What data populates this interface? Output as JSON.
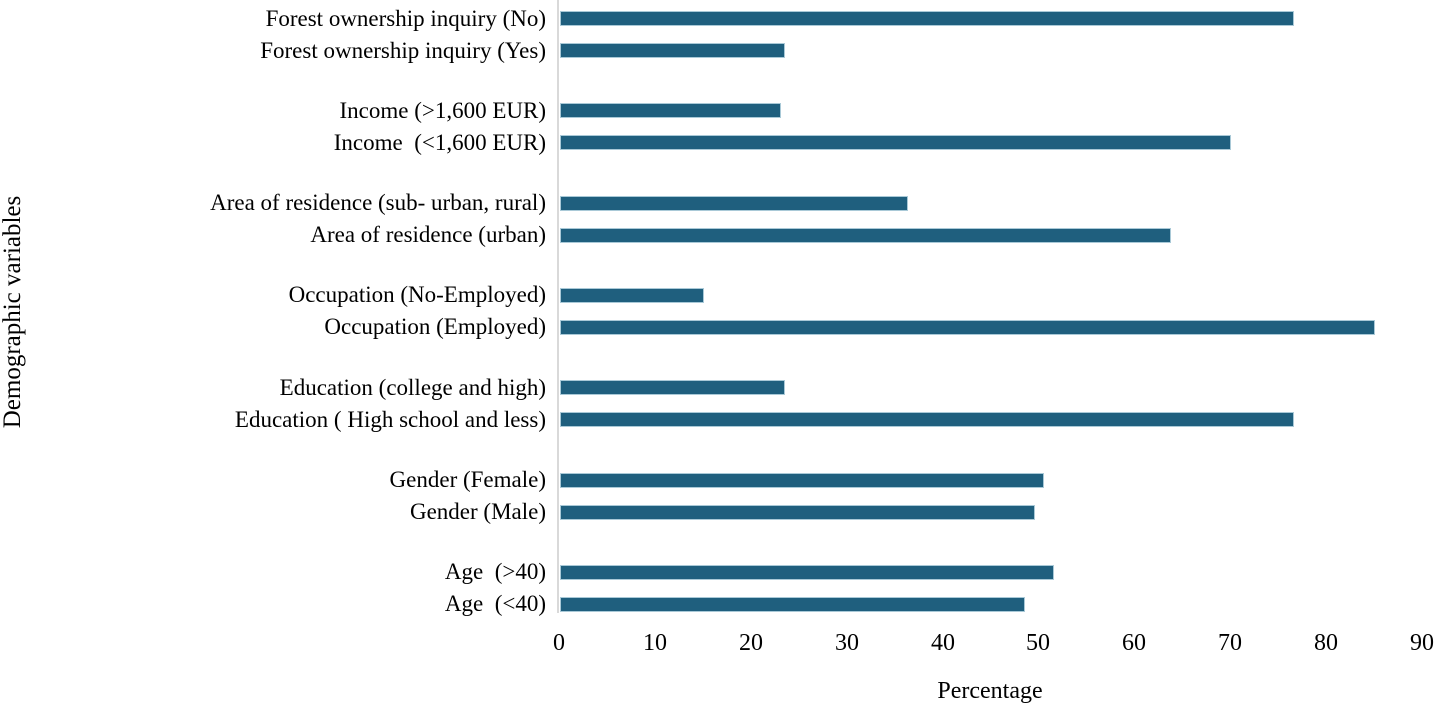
{
  "figure": {
    "background_color": "#ffffff",
    "text_color": "#000000"
  },
  "chart_data": {
    "type": "bar",
    "orientation": "horizontal",
    "title": "",
    "xlabel": "Percentage",
    "ylabel": "Demographic variables",
    "xlim": [
      0,
      90
    ],
    "x_ticks": [
      0,
      10,
      20,
      30,
      40,
      50,
      60,
      70,
      80,
      90
    ],
    "grid": false,
    "legend": false,
    "bar_color": "#1f5f7e",
    "bar_edge_color": "#a9c9d7",
    "axis_line_color": "#d9d9d9",
    "groups": [
      {
        "bars": [
          {
            "label": "Forest ownership inquiry (No)",
            "value": 76.5
          },
          {
            "label": "Forest ownership inquiry (Yes)",
            "value": 23.5
          }
        ]
      },
      {
        "bars": [
          {
            "label": "Income (>1,600 EUR)",
            "value": 23
          },
          {
            "label": "Income  (<1,600 EUR)",
            "value": 70
          }
        ]
      },
      {
        "bars": [
          {
            "label": "Area of residence (sub- urban, rural)",
            "value": 36.3
          },
          {
            "label": "Area of residence (urban)",
            "value": 63.7
          }
        ]
      },
      {
        "bars": [
          {
            "label": "Occupation (No-Employed)",
            "value": 15
          },
          {
            "label": "Occupation (Employed)",
            "value": 85
          }
        ]
      },
      {
        "bars": [
          {
            "label": "Education (college and high)",
            "value": 23.5
          },
          {
            "label": "Education ( High school and less)",
            "value": 76.5
          }
        ]
      },
      {
        "bars": [
          {
            "label": "Gender (Female)",
            "value": 50.5
          },
          {
            "label": "Gender (Male)",
            "value": 49.5
          }
        ]
      },
      {
        "bars": [
          {
            "label": "Age  (>40)",
            "value": 51.5
          },
          {
            "label": "Age  (<40)",
            "value": 48.5
          }
        ]
      }
    ]
  }
}
